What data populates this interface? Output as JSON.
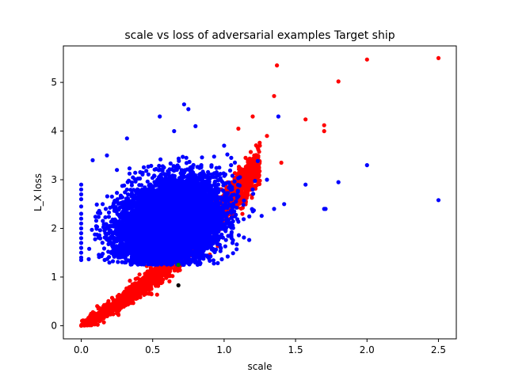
{
  "chart_data": {
    "type": "scatter",
    "title": "scale vs loss of adversarial examples Target ship",
    "xlabel": "scale",
    "ylabel": "L_X loss",
    "xlim": [
      -0.125,
      2.625
    ],
    "ylim": [
      -0.27,
      5.75
    ],
    "xticks": [
      0.0,
      0.5,
      1.0,
      1.5,
      2.0,
      2.5
    ],
    "yticks": [
      0,
      1,
      2,
      3,
      4,
      5
    ],
    "grid": false,
    "legend": "none",
    "series": [
      {
        "color": "#0000ff",
        "description": "dense cloud centered near scale 0.6, loss 2.1 plus sparse points",
        "points": [
          [
            0.0,
            2.9
          ],
          [
            0.0,
            2.8
          ],
          [
            0.0,
            2.7
          ],
          [
            0.0,
            2.6
          ],
          [
            0.0,
            2.45
          ],
          [
            0.0,
            2.3
          ],
          [
            0.0,
            2.2
          ],
          [
            0.0,
            2.1
          ],
          [
            0.0,
            2.0
          ],
          [
            0.0,
            1.9
          ],
          [
            0.0,
            1.8
          ],
          [
            0.0,
            1.7
          ],
          [
            0.0,
            1.6
          ],
          [
            0.0,
            1.5
          ],
          [
            0.0,
            1.4
          ],
          [
            0.0,
            1.35
          ],
          [
            0.08,
            3.4
          ],
          [
            0.18,
            3.5
          ],
          [
            0.32,
            3.85
          ],
          [
            0.25,
            3.2
          ],
          [
            0.15,
            2.5
          ],
          [
            0.55,
            4.3
          ],
          [
            0.72,
            4.55
          ],
          [
            0.75,
            4.45
          ],
          [
            0.8,
            4.1
          ],
          [
            0.65,
            4.0
          ],
          [
            1.0,
            3.7
          ],
          [
            1.05,
            3.45
          ],
          [
            1.2,
            2.8
          ],
          [
            1.3,
            3.0
          ],
          [
            1.35,
            2.4
          ],
          [
            1.38,
            4.3
          ],
          [
            1.42,
            2.5
          ],
          [
            1.57,
            2.9
          ],
          [
            1.7,
            2.4
          ],
          [
            1.71,
            2.4
          ],
          [
            1.8,
            2.95
          ],
          [
            2.0,
            3.3
          ],
          [
            2.5,
            2.58
          ]
        ],
        "cloud": {
          "center": [
            0.62,
            2.1
          ],
          "spread": [
            0.17,
            0.42
          ],
          "count": 9000
        }
      },
      {
        "color": "#ff0000",
        "description": "band rising from origin toward upper right",
        "points": [
          [
            0.0,
            0.0
          ],
          [
            1.37,
            5.35
          ],
          [
            1.35,
            4.72
          ],
          [
            2.0,
            5.47
          ],
          [
            2.5,
            5.5
          ],
          [
            1.8,
            5.02
          ],
          [
            1.57,
            4.24
          ],
          [
            1.7,
            4.12
          ],
          [
            1.7,
            4.0
          ],
          [
            1.3,
            3.9
          ],
          [
            1.4,
            3.35
          ],
          [
            1.2,
            4.3
          ],
          [
            1.25,
            3.7
          ],
          [
            1.15,
            3.45
          ],
          [
            1.1,
            4.05
          ]
        ],
        "band": {
          "x_range": [
            0.0,
            1.25
          ],
          "count": 2500
        }
      },
      {
        "color": "#008000",
        "description": "few points near scale 0.68, loss 1.25",
        "points": [
          [
            0.68,
            1.25
          ]
        ]
      },
      {
        "color": "#000000",
        "description": "few points near scale 0.68, loss 0.83",
        "points": [
          [
            0.68,
            0.83
          ]
        ]
      }
    ]
  }
}
